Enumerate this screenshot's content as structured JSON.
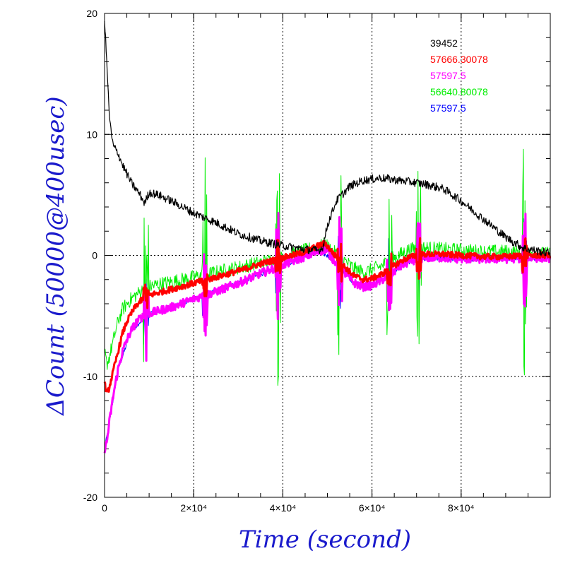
{
  "chart_data": {
    "type": "line",
    "xlabel": "Time (second)",
    "ylabel": "ΔCount (50000@400usec)",
    "xlim": [
      0,
      100000
    ],
    "ylim": [
      -20,
      20
    ],
    "x_ticks": [
      {
        "value": 0,
        "label": "0"
      },
      {
        "value": 20000,
        "label": "2×10⁴"
      },
      {
        "value": 40000,
        "label": "4×10⁴"
      },
      {
        "value": 60000,
        "label": "6×10⁴"
      },
      {
        "value": 80000,
        "label": "8×10⁴"
      }
    ],
    "y_ticks": [
      {
        "value": -20,
        "label": "-20"
      },
      {
        "value": -10,
        "label": "-10"
      },
      {
        "value": 0,
        "label": "0"
      },
      {
        "value": 10,
        "label": "10"
      },
      {
        "value": 20,
        "label": "20"
      }
    ],
    "grid": true,
    "legend_position": "top-right",
    "spike_times": [
      9300,
      22500,
      38900,
      52800,
      63900,
      70500,
      94200
    ],
    "series": [
      {
        "name": "39452",
        "color": "#000000",
        "x": [
          0,
          500,
          1000,
          1500,
          2000,
          3000,
          4000,
          6000,
          8000,
          9000,
          10000,
          12000,
          15000,
          20000,
          25000,
          30000,
          35000,
          40000,
          45000,
          48000,
          49000,
          50000,
          52000,
          55000,
          58000,
          62000,
          66000,
          70000,
          73000,
          76000,
          80000,
          85000,
          90000,
          94000,
          98000,
          100000
        ],
        "y": [
          19.5,
          16,
          12,
          10,
          9,
          8.5,
          7.5,
          6,
          5,
          4.3,
          5.2,
          5,
          4.5,
          3.5,
          2.7,
          1.8,
          1.2,
          0.8,
          0.5,
          0.4,
          0.7,
          2.5,
          4.5,
          5.7,
          6.2,
          6.4,
          6.2,
          6,
          5.8,
          5.5,
          4.5,
          3,
          1.5,
          0.6,
          0.3,
          0.2
        ]
      },
      {
        "name": "57666.30078",
        "color": "#ff0000",
        "x": [
          0,
          500,
          1000,
          2000,
          3000,
          4000,
          5000,
          6000,
          7000,
          8000,
          9000,
          10000,
          12000,
          15000,
          20000,
          25000,
          30000,
          35000,
          40000,
          45000,
          48000,
          49500,
          51000,
          54000,
          56000,
          58000,
          60000,
          62000,
          64000,
          66000,
          68000,
          70000,
          72000,
          76000,
          80000,
          85000,
          90000,
          95000,
          100000
        ],
        "y": [
          -10.5,
          -11.5,
          -11,
          -9.5,
          -8,
          -6.5,
          -5.5,
          -4.8,
          -4.2,
          -3.8,
          -3.5,
          -3.3,
          -3.1,
          -2.8,
          -2.3,
          -1.8,
          -1.3,
          -0.7,
          -0.2,
          0.3,
          0.8,
          1,
          0.3,
          -1,
          -1.7,
          -2,
          -1.9,
          -1.6,
          -1.1,
          -0.6,
          -0.2,
          0,
          0.1,
          0.1,
          0,
          -0.1,
          -0.1,
          0,
          0
        ]
      },
      {
        "name": "57597.5",
        "color": "#ff00ff",
        "x": [
          0,
          500,
          1000,
          2000,
          3000,
          4000,
          5000,
          6000,
          7000,
          8000,
          9000,
          10000,
          12000,
          15000,
          20000,
          25000,
          30000,
          35000,
          40000,
          45000,
          48000,
          49500,
          51000,
          54000,
          56000,
          58000,
          60000,
          62000,
          64000,
          66000,
          68000,
          70000,
          72000,
          76000,
          80000,
          85000,
          90000,
          95000,
          100000
        ],
        "y": [
          -16,
          -15.5,
          -14,
          -11.5,
          -9.5,
          -8,
          -7,
          -6.2,
          -5.6,
          -5.2,
          -5,
          -4.8,
          -4.6,
          -4.3,
          -3.6,
          -3,
          -2.3,
          -1.5,
          -0.8,
          -0.1,
          0.3,
          0.5,
          -0.2,
          -1.5,
          -2.3,
          -2.6,
          -2.5,
          -2.1,
          -1.6,
          -1,
          -0.6,
          -0.3,
          -0.2,
          -0.2,
          -0.3,
          -0.3,
          -0.3,
          -0.2,
          -0.2
        ]
      },
      {
        "name": "56640.80078",
        "color": "#00ee00",
        "x": [
          0,
          500,
          1000,
          2000,
          3000,
          4000,
          5000,
          6000,
          7000,
          8000,
          9000,
          10000,
          12000,
          15000,
          20000,
          25000,
          30000,
          35000,
          40000,
          45000,
          48000,
          49500,
          51000,
          54000,
          56000,
          58000,
          60000,
          62000,
          64000,
          66000,
          68000,
          70000,
          72000,
          76000,
          80000,
          85000,
          90000,
          95000,
          100000
        ],
        "y": [
          -8,
          -9,
          -8.5,
          -7,
          -5.5,
          -4.5,
          -4,
          -3.6,
          -3.3,
          -3,
          -2.8,
          -2.6,
          -2.4,
          -2.2,
          -1.8,
          -1.4,
          -1,
          -0.6,
          -0.2,
          0.4,
          0.7,
          0.9,
          0.4,
          -0.5,
          -1.1,
          -1.4,
          -1.2,
          -0.9,
          -0.4,
          0,
          0.4,
          0.6,
          0.6,
          0.5,
          0.4,
          0.3,
          0.3,
          0.2,
          0.1
        ]
      },
      {
        "name": "57597.5",
        "color": "#0000ff",
        "x": [
          0,
          1000,
          3000,
          6000,
          10000,
          15000,
          20000,
          30000,
          40000,
          48000,
          51000,
          56000,
          60000,
          66000,
          70000,
          80000,
          90000,
          100000
        ],
        "y": [
          -16,
          -14,
          -9.5,
          -6.2,
          -4.8,
          -4.3,
          -3.6,
          -2.3,
          -0.8,
          0.3,
          -0.2,
          -2.3,
          -2.5,
          -1,
          -0.3,
          -0.3,
          -0.3,
          -0.2
        ]
      }
    ]
  }
}
